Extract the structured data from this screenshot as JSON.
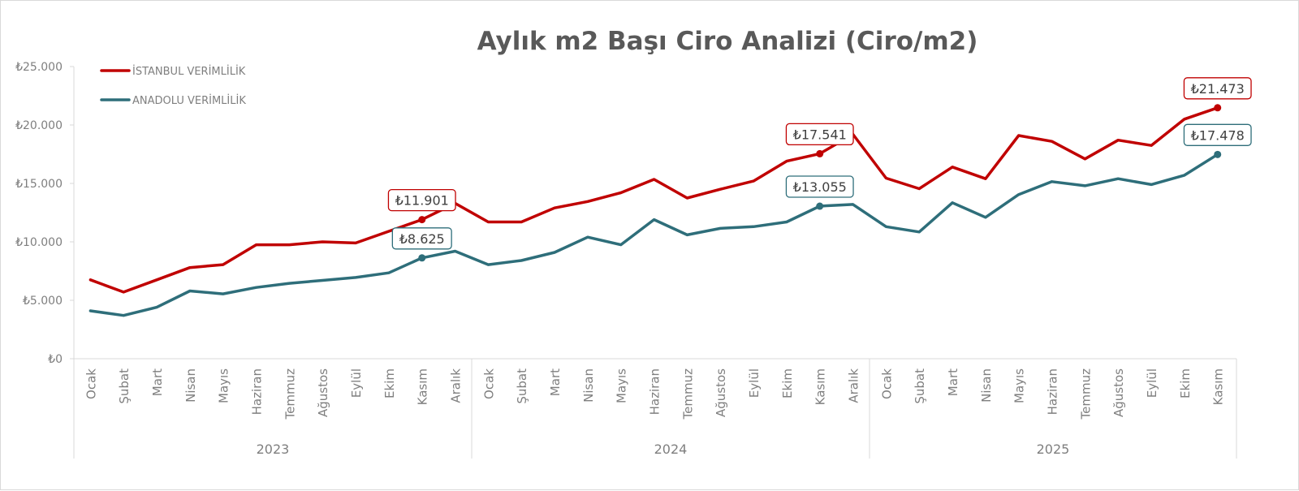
{
  "chart_data": {
    "type": "line",
    "title": "Aylık m2 Başı Ciro Analizi (Ciro/m2)",
    "xlabel": "",
    "ylabel": "",
    "ylim": [
      0,
      25000
    ],
    "y_ticks": [
      "₺0",
      "₺5.000",
      "₺10.000",
      "₺15.000",
      "₺20.000",
      "₺25.000"
    ],
    "y_tick_values": [
      0,
      5000,
      10000,
      15000,
      20000,
      25000
    ],
    "grid": false,
    "legend_position": "top-left",
    "groups": [
      {
        "label": "2023",
        "months": [
          "Ocak",
          "Şubat",
          "Mart",
          "Nisan",
          "Mayıs",
          "Haziran",
          "Temmuz",
          "Ağustos",
          "Eylül",
          "Ekim",
          "Kasım",
          "Aralık"
        ]
      },
      {
        "label": "2024",
        "months": [
          "Ocak",
          "Şubat",
          "Mart",
          "Nisan",
          "Mayıs",
          "Haziran",
          "Temmuz",
          "Ağustos",
          "Eylül",
          "Ekim",
          "Kasım",
          "Aralık"
        ]
      },
      {
        "label": "2025",
        "months": [
          "Ocak",
          "Şubat",
          "Mart",
          "Nisan",
          "Mayıs",
          "Haziran",
          "Temmuz",
          "Ağustos",
          "Eylül",
          "Ekim",
          "Kasım"
        ]
      }
    ],
    "series": [
      {
        "name": "İSTANBUL VERİMLİLİK",
        "color": "#c00000",
        "values": [
          6750,
          5700,
          6750,
          7800,
          8050,
          9750,
          9750,
          10000,
          9900,
          10900,
          11901,
          13300,
          11700,
          11700,
          12900,
          13450,
          14200,
          15350,
          13750,
          14500,
          15200,
          16900,
          17541,
          19200,
          15450,
          14550,
          16400,
          15400,
          19100,
          18600,
          17100,
          18700,
          18250,
          20500,
          21473
        ],
        "labels": [
          {
            "index": 10,
            "text": "₺11.901"
          },
          {
            "index": 22,
            "text": "₺17.541"
          },
          {
            "index": 34,
            "text": "₺21.473"
          }
        ]
      },
      {
        "name": "ANADOLU VERİMLİLİK",
        "color": "#2e6e7a",
        "values": [
          4100,
          3700,
          4400,
          5800,
          5550,
          6100,
          6450,
          6700,
          6950,
          7350,
          8625,
          9200,
          8050,
          8400,
          9100,
          10400,
          9750,
          11900,
          10600,
          11150,
          11300,
          11700,
          13055,
          13200,
          11300,
          10850,
          13350,
          12100,
          14050,
          15150,
          14800,
          15400,
          14900,
          15700,
          17478
        ],
        "labels": [
          {
            "index": 10,
            "text": "₺8.625"
          },
          {
            "index": 22,
            "text": "₺13.055"
          },
          {
            "index": 34,
            "text": "₺17.478"
          }
        ]
      }
    ]
  }
}
